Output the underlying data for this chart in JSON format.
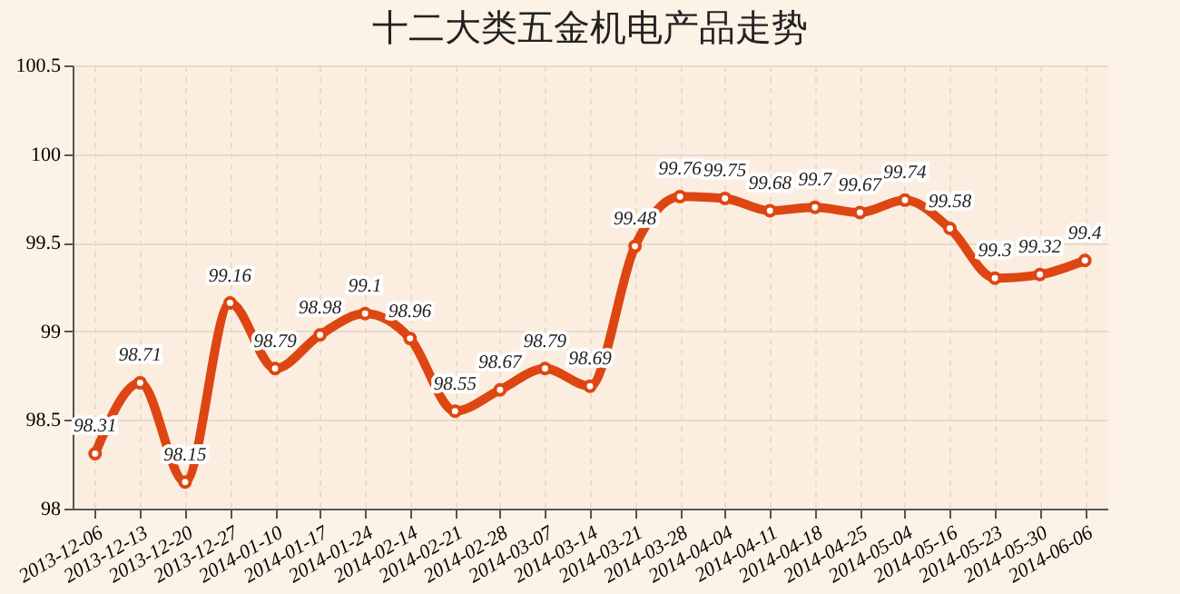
{
  "chart_data": {
    "type": "line",
    "title": "十二大类五金机电产品走势",
    "categories": [
      "2013-12-06",
      "2013-12-13",
      "2013-12-20",
      "2013-12-27",
      "2014-01-10",
      "2014-01-17",
      "2014-01-24",
      "2014-02-14",
      "2014-02-21",
      "2014-02-28",
      "2014-03-07",
      "2014-03-14",
      "2014-03-21",
      "2014-03-28",
      "2014-04-04",
      "2014-04-11",
      "2014-04-18",
      "2014-04-25",
      "2014-05-04",
      "2014-05-16",
      "2014-05-23",
      "2014-05-30",
      "2014-06-06"
    ],
    "series": [
      {
        "color": "#dd4612",
        "values": [
          98.31,
          98.71,
          98.15,
          99.16,
          98.79,
          98.98,
          99.1,
          98.96,
          98.55,
          98.67,
          98.79,
          98.69,
          99.48,
          99.76,
          99.75,
          99.68,
          99.7,
          99.67,
          99.74,
          99.58,
          99.3,
          99.32,
          99.4
        ]
      }
    ],
    "ylim": [
      98,
      100.5
    ],
    "yticks": [
      98,
      98.5,
      99,
      99.5,
      100,
      100.5
    ],
    "grid": true,
    "data_labels": true,
    "marker": "circle",
    "line_style": "solid",
    "legend": false
  }
}
